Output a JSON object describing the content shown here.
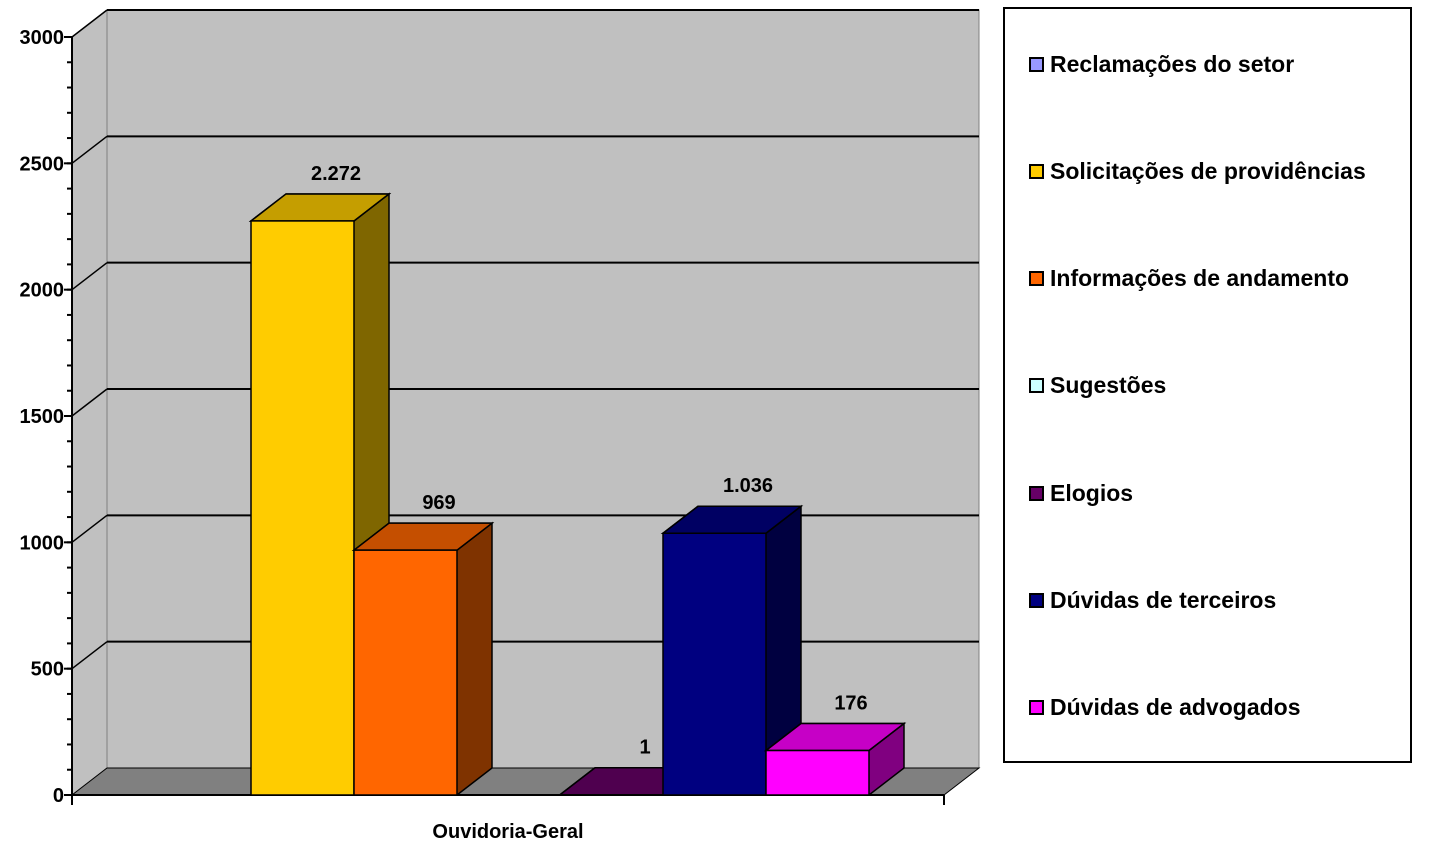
{
  "chart_data": {
    "type": "bar",
    "style": "3d-clustered-column",
    "categories": [
      "Ouvidoria-Geral"
    ],
    "series": [
      {
        "name": "Reclamações do setor",
        "values": [
          0
        ],
        "label": "",
        "color": "#9999FF",
        "side": "#5C5C99"
      },
      {
        "name": "Solicitações de providências",
        "values": [
          2272
        ],
        "label": "2.272",
        "color": "#FFCC00",
        "side": "#7F6600"
      },
      {
        "name": "Informações de andamento",
        "values": [
          969
        ],
        "label": "969",
        "color": "#FF6600",
        "side": "#7F3300"
      },
      {
        "name": "Sugestões",
        "values": [
          0
        ],
        "label": "",
        "color": "#CCFFFF",
        "side": "#7A9999"
      },
      {
        "name": "Elogios",
        "values": [
          1
        ],
        "label": "1",
        "color": "#660066",
        "side": "#330033"
      },
      {
        "name": "Dúvidas de terceiros",
        "values": [
          1036
        ],
        "label": "1.036",
        "color": "#000080",
        "side": "#000040"
      },
      {
        "name": "Dúvidas de advogados",
        "values": [
          176
        ],
        "label": "176",
        "color": "#FF00FF",
        "side": "#800080"
      }
    ],
    "y_ticks": [
      "0",
      "500",
      "1000",
      "1500",
      "2000",
      "2500",
      "3000"
    ],
    "ylim": [
      0,
      3000
    ],
    "title": "",
    "xlabel": "",
    "ylabel": "",
    "grid": true,
    "legend_position": "right",
    "colors": {
      "plot_background": "#C0C0C0",
      "floor": "#808080",
      "gridline": "#000000"
    }
  }
}
